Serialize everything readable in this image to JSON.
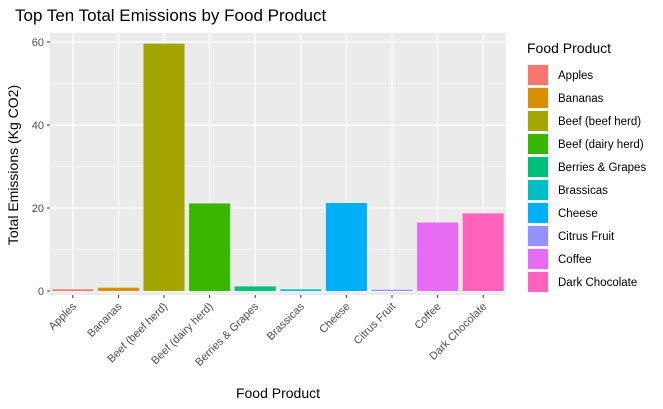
{
  "chart_data": {
    "type": "bar",
    "title": "Top Ten Total Emissions by Food Product",
    "xlabel": "Food Product",
    "ylabel": "Total Emissions (Kg CO2)",
    "ylim": [
      0,
      63
    ],
    "yticks": [
      0,
      20,
      40,
      60
    ],
    "grid": true,
    "legend_position": "right",
    "legend_title": "Food Product",
    "categories": [
      "Apples",
      "Bananas",
      "Beef (beef herd)",
      "Beef (dairy herd)",
      "Berries & Grapes",
      "Brassicas",
      "Cheese",
      "Citrus Fruit",
      "Coffee",
      "Dark Chocolate"
    ],
    "values": [
      0.4,
      0.8,
      59.6,
      21.1,
      1.1,
      0.4,
      21.2,
      0.3,
      16.5,
      18.7
    ],
    "colors": [
      "#F8766D",
      "#D89000",
      "#A3A500",
      "#39B600",
      "#00BF7D",
      "#00BFC4",
      "#00B0F6",
      "#9590FF",
      "#E76BF3",
      "#FF62BC"
    ]
  }
}
